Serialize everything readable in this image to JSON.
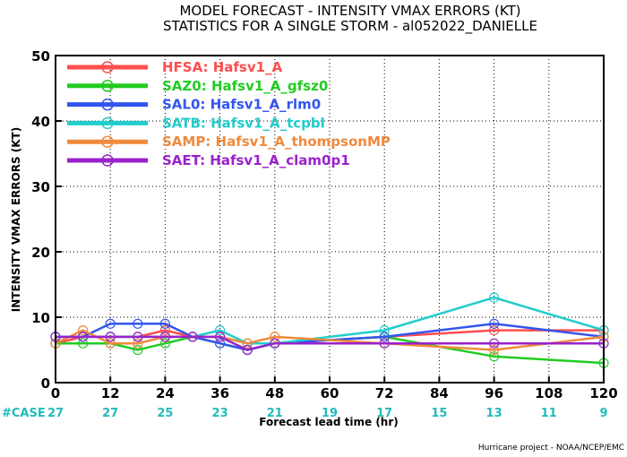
{
  "title_line1": "MODEL FORECAST - INTENSITY VMAX ERRORS (KT)",
  "title_line2": "STATISTICS FOR A SINGLE STORM - al052022_DANIELLE",
  "credit": "Hurricane project - NOAA/NCEP/EMC",
  "chart_data": {
    "type": "line",
    "xlabel": "Forecast lead time (hr)",
    "ylabel": "INTENSITY VMAX ERRORS (KT)",
    "xlim": [
      0,
      120
    ],
    "ylim": [
      0,
      50
    ],
    "xticks": [
      0,
      12,
      24,
      36,
      48,
      60,
      72,
      84,
      96,
      108,
      120
    ],
    "yticks": [
      0,
      10,
      20,
      30,
      40,
      50
    ],
    "grid": true,
    "legend_position": "top-left",
    "case_label": "#CASE",
    "case_counts": [
      {
        "x": 0,
        "n": "27"
      },
      {
        "x": 12,
        "n": "27"
      },
      {
        "x": 24,
        "n": "25"
      },
      {
        "x": 36,
        "n": "23"
      },
      {
        "x": 48,
        "n": "21"
      },
      {
        "x": 60,
        "n": "19"
      },
      {
        "x": 72,
        "n": "17"
      },
      {
        "x": 84,
        "n": "15"
      },
      {
        "x": 96,
        "n": "13"
      },
      {
        "x": 108,
        "n": "11"
      },
      {
        "x": 120,
        "n": "9"
      }
    ],
    "x": [
      0,
      6,
      12,
      18,
      24,
      30,
      36,
      42,
      48,
      72,
      96,
      120
    ],
    "series": [
      {
        "name": "HFSA: Hafsv1_A",
        "color": "#ff4d4d",
        "values": [
          6,
          7,
          7,
          7,
          8,
          7,
          7,
          6,
          6,
          7,
          8,
          8
        ]
      },
      {
        "name": "SAZ0: Hafsv1_A_gfsz0",
        "color": "#22cc22",
        "values": [
          6,
          6,
          6,
          5,
          6,
          7,
          6,
          5,
          6,
          7,
          4,
          3
        ]
      },
      {
        "name": "SAL0: Hafsv1_A_rlm0",
        "color": "#3355ee",
        "values": [
          7,
          7,
          9,
          9,
          9,
          7,
          6,
          5,
          6,
          7,
          9,
          7
        ]
      },
      {
        "name": "SATB: Hafsv1_A_tcpbl",
        "color": "#22cccc",
        "values": [
          7,
          7,
          7,
          7,
          7,
          7,
          8,
          6,
          6,
          8,
          13,
          8
        ]
      },
      {
        "name": "SAMP: Hafsv1_A_thompsonMP",
        "color": "#f08a3c",
        "values": [
          6,
          8,
          6,
          6,
          7,
          7,
          7,
          6,
          7,
          6,
          5,
          7
        ]
      },
      {
        "name": "SAET: Hafsv1_A_clam0p1",
        "color": "#9922cc",
        "values": [
          7,
          7,
          7,
          7,
          7,
          7,
          7,
          5,
          6,
          6,
          6,
          6
        ]
      }
    ]
  }
}
